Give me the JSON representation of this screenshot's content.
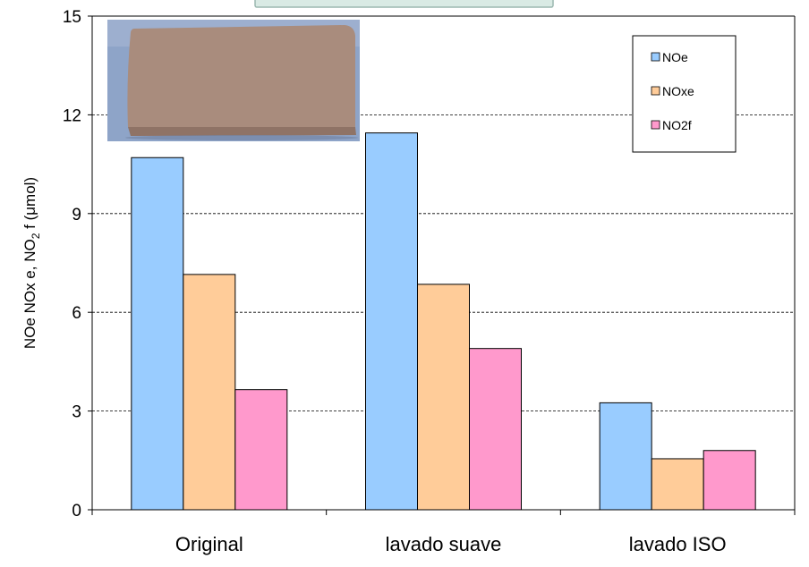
{
  "chart_data": {
    "type": "bar",
    "categories": [
      "Original",
      "lavado suave",
      "lavado ISO"
    ],
    "series": [
      {
        "name": "NOe",
        "values": [
          10.7,
          11.45,
          3.25
        ],
        "color": "#99ccff"
      },
      {
        "name": "NOxe",
        "values": [
          7.15,
          6.85,
          1.55
        ],
        "color": "#ffcc99"
      },
      {
        "name": "NO2f",
        "values": [
          3.65,
          4.9,
          1.8
        ],
        "color": "#ff99cc"
      }
    ],
    "ylabel": {
      "main": "NOe NOx e, NO",
      "subscript": "2",
      "suffix": " f (μmol)"
    },
    "ylim": [
      0,
      15
    ],
    "yticks": [
      0,
      3,
      6,
      9,
      12,
      15
    ],
    "grid": "dashed-horizontal",
    "legend": {
      "placement": "top-right"
    },
    "photo": {
      "description": "inset photo of a tan brick sample",
      "colors": {
        "background": "#8ea4c8",
        "brick_top": "#a98c7d",
        "brick_side": "#8f7366"
      }
    }
  }
}
